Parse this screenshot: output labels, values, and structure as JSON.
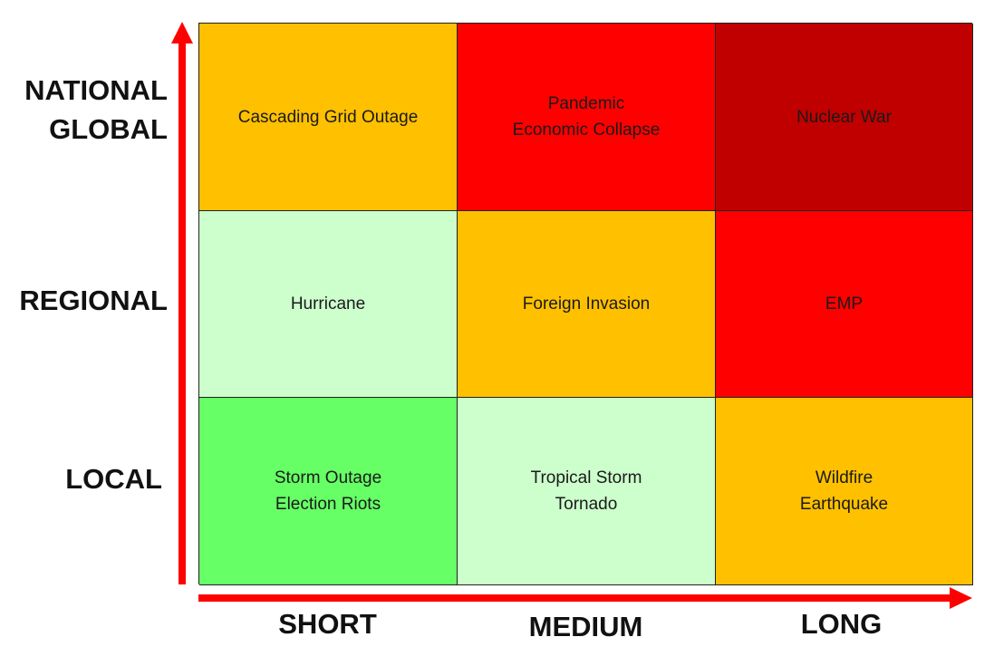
{
  "y_axis": {
    "levels": [
      {
        "lines": [
          "NATIONAL",
          "GLOBAL"
        ]
      },
      {
        "lines": [
          "REGIONAL"
        ]
      },
      {
        "lines": [
          "LOCAL"
        ]
      }
    ]
  },
  "x_axis": {
    "levels": [
      "SHORT",
      "MEDIUM",
      "LONG"
    ]
  },
  "colors": {
    "axis": "#ff0000",
    "low": "#66ff66",
    "low_moderate": "#ccffcc",
    "moderate": "#ffc000",
    "high": "#ff0000",
    "severe": "#c00000"
  },
  "matrix": {
    "rows": [
      {
        "cells": [
          {
            "lines": [
              "Cascading Grid Outage"
            ],
            "color": "#ffc000"
          },
          {
            "lines": [
              "Pandemic",
              "Economic Collapse"
            ],
            "color": "#ff0000"
          },
          {
            "lines": [
              "Nuclear War"
            ],
            "color": "#c00000"
          }
        ]
      },
      {
        "cells": [
          {
            "lines": [
              "Hurricane"
            ],
            "color": "#ccffcc"
          },
          {
            "lines": [
              "Foreign Invasion"
            ],
            "color": "#ffc000"
          },
          {
            "lines": [
              "EMP"
            ],
            "color": "#ff0000"
          }
        ]
      },
      {
        "cells": [
          {
            "lines": [
              "Storm Outage",
              "Election Riots"
            ],
            "color": "#66ff66"
          },
          {
            "lines": [
              "Tropical Storm",
              "Tornado"
            ],
            "color": "#ccffcc"
          },
          {
            "lines": [
              "Wildfire",
              "Earthquake"
            ],
            "color": "#ffc000"
          }
        ]
      }
    ]
  }
}
